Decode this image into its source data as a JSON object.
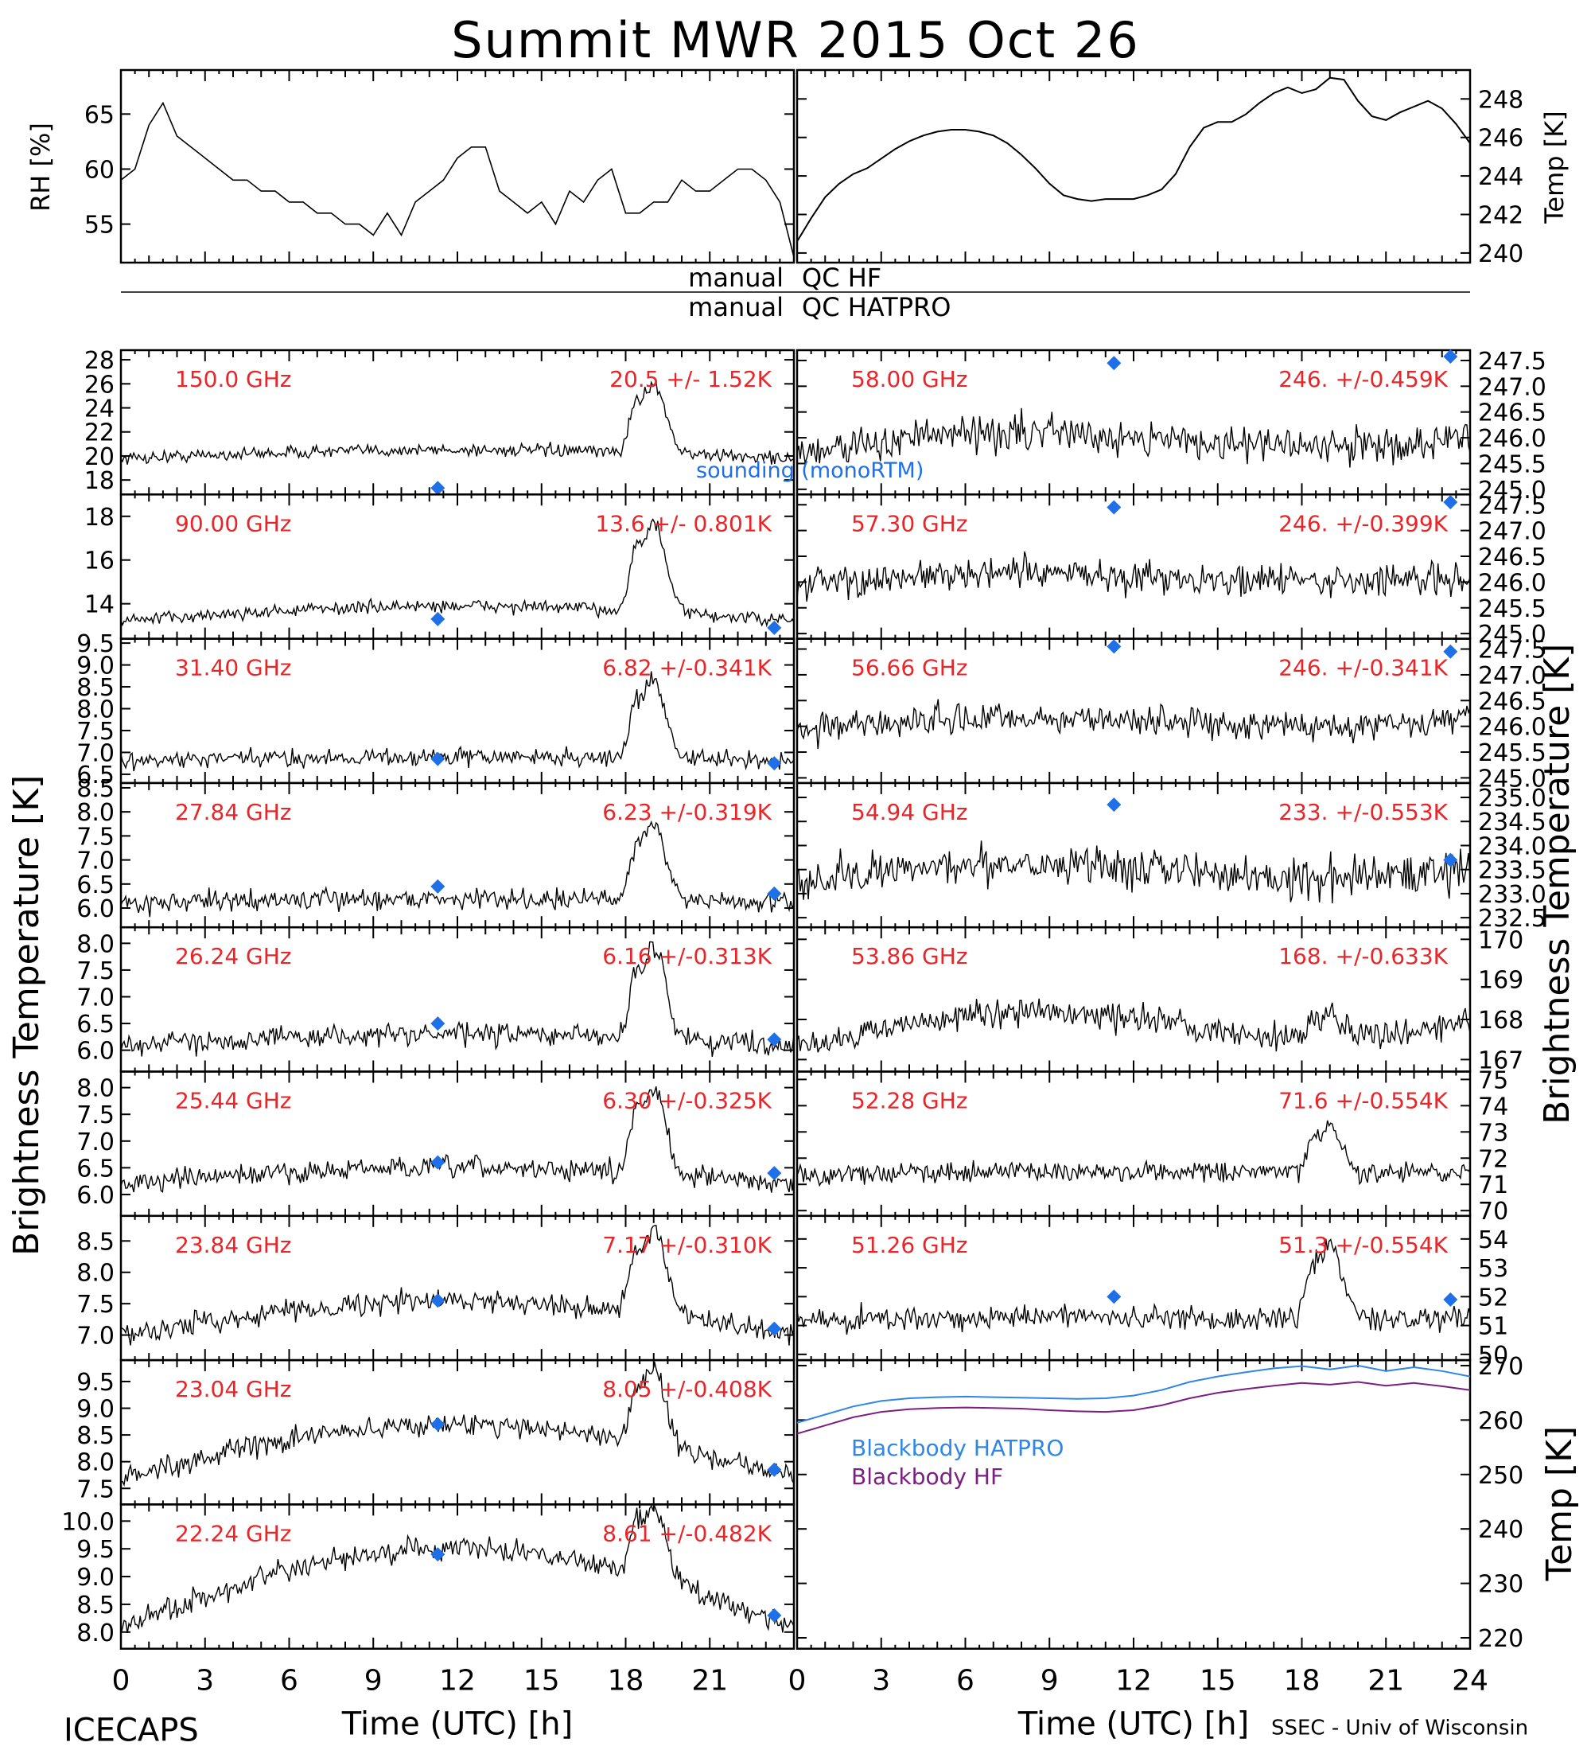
{
  "title": "Summit MWR 2015 Oct 26",
  "footer": {
    "left": "ICECAPS",
    "right": "SSEC - Univ of Wisconsin",
    "xlabel_left": "Time (UTC) [h]",
    "xlabel_right": "Time (UTC) [h]"
  },
  "labels": {
    "left_y": "Brightness Temperature [K]",
    "right_y": "Brightness Temperature [K]",
    "right_bottom_y": "Temp [K]",
    "qc_hf_left": "manual",
    "qc_hf_right": "QC HF",
    "qc_hat_left": "manual",
    "qc_hat_right": "QC HATPRO",
    "sounding_label": "sounding (monoRTM)"
  },
  "colors": {
    "freq_text": "#e8262a",
    "sounding": "#1e6fe8",
    "bb_hatpro": "#2f86e6",
    "bb_hf": "#7b1f83",
    "trace": "#000000"
  },
  "chart_data": {
    "type": "line",
    "x_ticks": [
      "0",
      "3",
      "6",
      "9",
      "12",
      "15",
      "18",
      "21",
      "24"
    ],
    "x_ticks_left": [
      "0",
      "3",
      "6",
      "9",
      "12",
      "15",
      "18",
      "21"
    ],
    "xlim": [
      0,
      24
    ],
    "rh_panel": {
      "ylabel": "RH [%]",
      "ylim": [
        51.5,
        69
      ],
      "yticks": [
        "55",
        "60",
        "65"
      ],
      "x": [
        0,
        0.5,
        1,
        1.5,
        2,
        2.5,
        3,
        3.5,
        4,
        4.5,
        5,
        5.5,
        6,
        6.5,
        7,
        7.5,
        8,
        8.5,
        9,
        9.5,
        10,
        10.5,
        11,
        11.5,
        12,
        12.5,
        13,
        13.5,
        14,
        14.5,
        15,
        15.5,
        16,
        16.5,
        17,
        17.5,
        18,
        18.5,
        19,
        19.5,
        20,
        20.5,
        21,
        21.5,
        22,
        22.5,
        23,
        23.5,
        24
      ],
      "y": [
        59,
        60,
        64,
        66,
        63,
        62,
        61,
        60,
        59,
        59,
        58,
        58,
        57,
        57,
        56,
        56,
        55,
        55,
        54,
        56,
        54,
        57,
        58,
        59,
        61,
        62,
        62,
        58,
        57,
        56,
        57,
        55,
        58,
        57,
        59,
        60,
        56,
        56,
        57,
        57,
        59,
        58,
        58,
        59,
        60,
        60,
        59,
        57,
        52
      ]
    },
    "temp_panel": {
      "ylabel": "Temp [K]",
      "ylim": [
        239.5,
        249.5
      ],
      "yticks": [
        "240",
        "242",
        "244",
        "246",
        "248"
      ],
      "x": [
        0,
        0.5,
        1,
        1.5,
        2,
        2.5,
        3,
        3.5,
        4,
        4.5,
        5,
        5.5,
        6,
        6.5,
        7,
        7.5,
        8,
        8.5,
        9,
        9.5,
        10,
        10.5,
        11,
        11.5,
        12,
        12.5,
        13,
        13.5,
        14,
        14.5,
        15,
        15.5,
        16,
        16.5,
        17,
        17.5,
        18,
        18.5,
        19,
        19.5,
        20,
        20.5,
        21,
        21.5,
        22,
        22.5,
        23,
        23.5,
        24
      ],
      "y": [
        240.6,
        241.8,
        242.9,
        243.6,
        244.1,
        244.4,
        244.9,
        245.4,
        245.8,
        246.1,
        246.3,
        246.4,
        246.4,
        246.3,
        246.1,
        245.7,
        245.1,
        244.4,
        243.6,
        243,
        242.8,
        242.7,
        242.8,
        242.8,
        242.8,
        243,
        243.3,
        244.1,
        245.5,
        246.5,
        246.8,
        246.8,
        247.2,
        247.8,
        248.3,
        248.6,
        248.3,
        248.5,
        249.1,
        249,
        247.9,
        247.1,
        246.9,
        247.3,
        247.6,
        247.9,
        247.5,
        246.7,
        245.7
      ]
    },
    "left_panels": [
      {
        "freq": "150.0 GHz",
        "stat": "20.5 +/- 1.52K",
        "yticks": [
          "18",
          "20",
          "22",
          "24",
          "26",
          "28"
        ],
        "ylim": [
          16.8,
          28.8
        ],
        "base": 19.8,
        "noise": 0.9,
        "trend": 0.7,
        "peak": 6.5,
        "sounding": [
          {
            "x": 11.3,
            "y": 17.2
          }
        ]
      },
      {
        "freq": "90.00 GHz",
        "stat": "13.6 +/- 0.801K",
        "yticks": [
          "14",
          "16",
          "18"
        ],
        "ylim": [
          12.4,
          19.0
        ],
        "base": 13.2,
        "noise": 0.5,
        "trend": 0.7,
        "peak": 4.5,
        "sounding": [
          {
            "x": 11.3,
            "y": 13.3
          },
          {
            "x": 23.3,
            "y": 12.9
          }
        ]
      },
      {
        "freq": "31.40 GHz",
        "stat": "6.82 +/-0.341K",
        "yticks": [
          "6.5",
          "7.0",
          "7.5",
          "8.0",
          "8.5",
          "9.0",
          "9.5"
        ],
        "ylim": [
          6.3,
          9.6
        ],
        "base": 6.8,
        "noise": 0.35,
        "trend": 0.1,
        "peak": 2.0,
        "sounding": [
          {
            "x": 11.3,
            "y": 6.85
          },
          {
            "x": 23.3,
            "y": 6.75
          }
        ]
      },
      {
        "freq": "27.84 GHz",
        "stat": "6.23 +/-0.319K",
        "yticks": [
          "6.0",
          "6.5",
          "7.0",
          "7.5",
          "8.0",
          "8.5"
        ],
        "ylim": [
          5.6,
          8.6
        ],
        "base": 6.1,
        "noise": 0.35,
        "trend": 0.1,
        "peak": 1.8,
        "sounding": [
          {
            "x": 11.3,
            "y": 6.45
          },
          {
            "x": 23.3,
            "y": 6.3
          }
        ]
      },
      {
        "freq": "26.24 GHz",
        "stat": "6.16 +/-0.313K",
        "yticks": [
          "6.0",
          "6.5",
          "7.0",
          "7.5",
          "8.0"
        ],
        "ylim": [
          5.6,
          8.3
        ],
        "base": 6.1,
        "noise": 0.35,
        "trend": 0.2,
        "peak": 1.9,
        "sounding": [
          {
            "x": 11.3,
            "y": 6.5
          },
          {
            "x": 23.3,
            "y": 6.2
          }
        ]
      },
      {
        "freq": "25.44 GHz",
        "stat": "6.30 +/-0.325K",
        "yticks": [
          "6.0",
          "6.5",
          "7.0",
          "7.5",
          "8.0"
        ],
        "ylim": [
          5.6,
          8.3
        ],
        "base": 6.2,
        "noise": 0.35,
        "trend": 0.3,
        "peak": 1.8,
        "sounding": [
          {
            "x": 11.3,
            "y": 6.6
          },
          {
            "x": 23.3,
            "y": 6.4
          }
        ]
      },
      {
        "freq": "23.84 GHz",
        "stat": "7.17 +/-0.310K",
        "yticks": [
          "7.0",
          "7.5",
          "8.0",
          "8.5"
        ],
        "ylim": [
          6.6,
          8.9
        ],
        "base": 7.0,
        "noise": 0.3,
        "trend": 0.55,
        "peak": 1.5,
        "sounding": [
          {
            "x": 11.3,
            "y": 7.55
          },
          {
            "x": 23.3,
            "y": 7.1
          }
        ]
      },
      {
        "freq": "23.04 GHz",
        "stat": "8.05 +/-0.408K",
        "yticks": [
          "7.5",
          "8.0",
          "8.5",
          "9.0",
          "9.5"
        ],
        "ylim": [
          7.2,
          9.9
        ],
        "base": 7.7,
        "noise": 0.35,
        "trend": 1.0,
        "peak": 1.6,
        "sounding": [
          {
            "x": 11.3,
            "y": 8.7
          },
          {
            "x": 23.3,
            "y": 7.85
          }
        ]
      },
      {
        "freq": "22.24 GHz",
        "stat": "8.61 +/-0.482K",
        "yticks": [
          "8.0",
          "8.5",
          "9.0",
          "9.5",
          "10.0"
        ],
        "ylim": [
          7.7,
          10.3
        ],
        "base": 8.1,
        "noise": 0.35,
        "trend": 1.4,
        "peak": 1.5,
        "sounding": [
          {
            "x": 11.3,
            "y": 9.4
          },
          {
            "x": 23.3,
            "y": 8.3
          }
        ]
      }
    ],
    "right_panels": [
      {
        "freq": "58.00 GHz",
        "stat": "246. +/-0.459K",
        "yticks": [
          "245.0",
          "245.5",
          "246.0",
          "246.5",
          "247.0",
          "247.5"
        ],
        "ylim": [
          244.9,
          247.7
        ],
        "base": 245.8,
        "noise": 0.6,
        "trend": 0.6,
        "peak": 0,
        "sounding": [
          {
            "x": 11.3,
            "y": 247.45
          },
          {
            "x": 23.3,
            "y": 247.6
          }
        ]
      },
      {
        "freq": "57.30 GHz",
        "stat": "246. +/-0.399K",
        "yticks": [
          "245.0",
          "245.5",
          "246.0",
          "246.5",
          "247.0",
          "247.5"
        ],
        "ylim": [
          244.9,
          247.7
        ],
        "base": 246.0,
        "noise": 0.55,
        "trend": 0.3,
        "peak": 0,
        "sounding": [
          {
            "x": 11.3,
            "y": 247.45
          },
          {
            "x": 23.3,
            "y": 247.55
          }
        ]
      },
      {
        "freq": "56.66 GHz",
        "stat": "246. +/-0.341K",
        "yticks": [
          "245.0",
          "245.5",
          "246.0",
          "246.5",
          "247.0",
          "247.5"
        ],
        "ylim": [
          244.9,
          247.7
        ],
        "base": 246.0,
        "noise": 0.5,
        "trend": 0.3,
        "peak": 0,
        "sounding": [
          {
            "x": 11.3,
            "y": 247.55
          },
          {
            "x": 23.3,
            "y": 247.45
          }
        ]
      },
      {
        "freq": "54.94 GHz",
        "stat": "233. +/-0.553K",
        "yticks": [
          "232.5",
          "233.0",
          "233.5",
          "234.0",
          "234.5",
          "235.0"
        ],
        "ylim": [
          232.3,
          235.3
        ],
        "base": 233.3,
        "noise": 0.7,
        "trend": 0.7,
        "peak": 0,
        "sounding": [
          {
            "x": 11.3,
            "y": 234.85
          },
          {
            "x": 23.3,
            "y": 233.7
          }
        ]
      },
      {
        "freq": "53.86 GHz",
        "stat": "168. +/-0.633K",
        "yticks": [
          "167",
          "168",
          "169",
          "170"
        ],
        "ylim": [
          166.7,
          170.3
        ],
        "base": 167.5,
        "noise": 0.6,
        "trend": 1.3,
        "peak": 0.6,
        "sounding": []
      },
      {
        "freq": "52.28 GHz",
        "stat": "71.6 +/-0.554K",
        "yticks": [
          "70",
          "71",
          "72",
          "73",
          "74",
          "75"
        ],
        "ylim": [
          69.8,
          75.3
        ],
        "base": 71.4,
        "noise": 0.7,
        "trend": 0.2,
        "peak": 2.0,
        "sounding": []
      },
      {
        "freq": "51.26 GHz",
        "stat": "51.3 +/-0.554K",
        "yticks": [
          "50",
          "51",
          "52",
          "53",
          "54"
        ],
        "ylim": [
          49.8,
          54.8
        ],
        "base": 51.2,
        "noise": 0.7,
        "trend": 0.2,
        "peak": 3.0,
        "sounding": [
          {
            "x": 11.3,
            "y": 52.0
          },
          {
            "x": 23.3,
            "y": 51.9
          }
        ]
      }
    ],
    "blackbody_panel": {
      "ylabel": "Temp [K]",
      "ylim": [
        218,
        271
      ],
      "yticks": [
        "220",
        "230",
        "240",
        "250",
        "260",
        "270"
      ],
      "series": [
        {
          "name": "Blackbody HATPRO",
          "x": [
            0,
            1,
            2,
            3,
            4,
            5,
            6,
            7,
            8,
            9,
            10,
            11,
            12,
            13,
            14,
            15,
            16,
            17,
            18,
            19,
            20,
            21,
            22,
            23,
            24
          ],
          "y": [
            259.5,
            261,
            262.5,
            263.5,
            264,
            264.2,
            264.3,
            264.2,
            264.1,
            264,
            263.9,
            264,
            264.5,
            265.5,
            267,
            268,
            268.8,
            269.5,
            269.9,
            269.3,
            270,
            269,
            269.7,
            269,
            268
          ]
        },
        {
          "name": "Blackbody HF",
          "x": [
            0,
            1,
            2,
            3,
            4,
            5,
            6,
            7,
            8,
            9,
            10,
            11,
            12,
            13,
            14,
            15,
            16,
            17,
            18,
            19,
            20,
            21,
            22,
            23,
            24
          ],
          "y": [
            257.5,
            259,
            260.5,
            261.5,
            262,
            262.2,
            262.3,
            262.2,
            262.1,
            261.8,
            261.6,
            261.5,
            261.8,
            262.7,
            264,
            265,
            265.7,
            266.3,
            266.8,
            266.5,
            267,
            266.3,
            266.8,
            266.2,
            265.5
          ]
        }
      ]
    }
  }
}
